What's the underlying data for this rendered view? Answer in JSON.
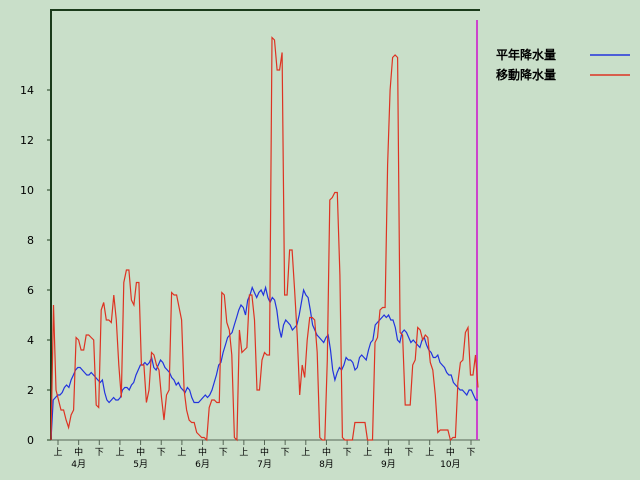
{
  "chart_data": {
    "type": "line",
    "title": "",
    "xlabel": "",
    "ylabel": "",
    "ylim": [
      0,
      16
    ],
    "yticks": [
      "0",
      "2",
      "4",
      "6",
      "8",
      "10",
      "12",
      "14"
    ],
    "subticks": [
      "上",
      "中",
      "下"
    ],
    "months": [
      "4月",
      "5月",
      "6月",
      "7月",
      "8月",
      "9月",
      "10月"
    ],
    "legend_position": "top-right",
    "grid": false,
    "series": [
      {
        "name": "平年降水量",
        "color": "#2233dd",
        "values": [
          0.0,
          1.6,
          1.7,
          1.8,
          1.8,
          1.9,
          2.1,
          2.2,
          2.1,
          2.4,
          2.6,
          2.8,
          2.9,
          2.9,
          2.8,
          2.7,
          2.6,
          2.6,
          2.7,
          2.6,
          2.5,
          2.4,
          2.3,
          2.4,
          1.9,
          1.6,
          1.5,
          1.6,
          1.7,
          1.6,
          1.6,
          1.7,
          2.0,
          2.1,
          2.1,
          2.0,
          2.2,
          2.3,
          2.6,
          2.8,
          3.0,
          3.0,
          3.1,
          3.0,
          3.1,
          3.3,
          2.9,
          2.8,
          3.0,
          3.2,
          3.1,
          2.9,
          2.8,
          2.7,
          2.5,
          2.4,
          2.2,
          2.3,
          2.1,
          2.0,
          1.9,
          2.1,
          2.0,
          1.7,
          1.5,
          1.5,
          1.5,
          1.6,
          1.7,
          1.8,
          1.7,
          1.8,
          2.0,
          2.3,
          2.6,
          3.0,
          3.1,
          3.5,
          3.8,
          4.1,
          4.2,
          4.3,
          4.6,
          4.9,
          5.2,
          5.4,
          5.3,
          5.0,
          5.6,
          5.8,
          6.1,
          5.9,
          5.7,
          5.9,
          6.0,
          5.8,
          6.1,
          5.7,
          5.5,
          5.7,
          5.6,
          5.2,
          4.5,
          4.1,
          4.6,
          4.8,
          4.7,
          4.6,
          4.4,
          4.5,
          4.6,
          5.0,
          5.5,
          6.0,
          5.8,
          5.7,
          5.2,
          4.6,
          4.4,
          4.2,
          4.1,
          4.0,
          3.9,
          4.1,
          4.2,
          3.6,
          2.8,
          2.4,
          2.7,
          2.9,
          2.8,
          3.0,
          3.3,
          3.2,
          3.2,
          3.1,
          2.8,
          2.9,
          3.3,
          3.4,
          3.3,
          3.2,
          3.6,
          3.9,
          4.0,
          4.6,
          4.7,
          4.8,
          4.9,
          5.0,
          4.9,
          5.0,
          4.8,
          4.8,
          4.5,
          4.0,
          3.9,
          4.3,
          4.4,
          4.3,
          4.1,
          3.9,
          4.0,
          3.9,
          3.8,
          3.7,
          4.0,
          4.1,
          3.8,
          3.6,
          3.5,
          3.3,
          3.3,
          3.4,
          3.1,
          3.0,
          2.9,
          2.7,
          2.6,
          2.6,
          2.3,
          2.2,
          2.1,
          2.0,
          2.0,
          1.9,
          1.8,
          2.0,
          2.0,
          1.8,
          1.6,
          1.6
        ]
      },
      {
        "name": "移動降水量",
        "color": "#dd3322",
        "values": [
          0.0,
          5.4,
          2.0,
          1.6,
          1.2,
          1.2,
          0.8,
          0.5,
          1.0,
          1.2,
          4.1,
          4.0,
          3.6,
          3.6,
          4.2,
          4.2,
          4.1,
          4.0,
          1.4,
          1.3,
          5.2,
          5.5,
          4.8,
          4.8,
          4.7,
          5.8,
          4.8,
          3.0,
          1.7,
          6.3,
          6.8,
          6.8,
          5.6,
          5.4,
          6.3,
          6.3,
          3.0,
          3.0,
          1.5,
          2.0,
          3.5,
          3.4,
          3.0,
          2.8,
          1.7,
          0.8,
          1.8,
          2.0,
          5.9,
          5.8,
          5.8,
          5.3,
          4.8,
          2.0,
          1.2,
          0.8,
          0.7,
          0.7,
          0.3,
          0.2,
          0.1,
          0.1,
          0.0,
          1.3,
          1.6,
          1.6,
          1.5,
          1.5,
          5.9,
          5.8,
          4.7,
          4.4,
          3.4,
          0.1,
          0.0,
          4.4,
          3.5,
          3.6,
          3.7,
          5.8,
          5.8,
          4.8,
          2.0,
          2.0,
          3.2,
          3.5,
          3.4,
          3.4,
          16.1,
          16.0,
          14.8,
          14.8,
          15.5,
          5.8,
          5.8,
          7.6,
          7.6,
          6.0,
          4.2,
          1.8,
          3.0,
          2.5,
          4.0,
          4.9,
          4.9,
          4.8,
          3.5,
          0.1,
          0.0,
          0.0,
          3.2,
          9.6,
          9.7,
          9.9,
          9.9,
          6.6,
          0.1,
          0.0,
          0.0,
          0.0,
          0.0,
          0.7,
          0.7,
          0.7,
          0.7,
          0.7,
          0.0,
          0.0,
          0.0,
          3.9,
          4.1,
          5.2,
          5.3,
          5.3,
          11.0,
          14.0,
          15.3,
          15.4,
          15.3,
          4.3,
          4.2,
          1.4,
          1.4,
          1.4,
          3.0,
          3.2,
          4.5,
          4.4,
          4.0,
          4.2,
          4.1,
          3.1,
          2.8,
          1.8,
          0.3,
          0.4,
          0.4,
          0.4,
          0.4,
          0.0,
          0.1,
          0.1,
          2.3,
          3.1,
          3.2,
          4.3,
          4.5,
          2.6,
          2.6,
          3.4,
          2.1
        ]
      }
    ]
  }
}
